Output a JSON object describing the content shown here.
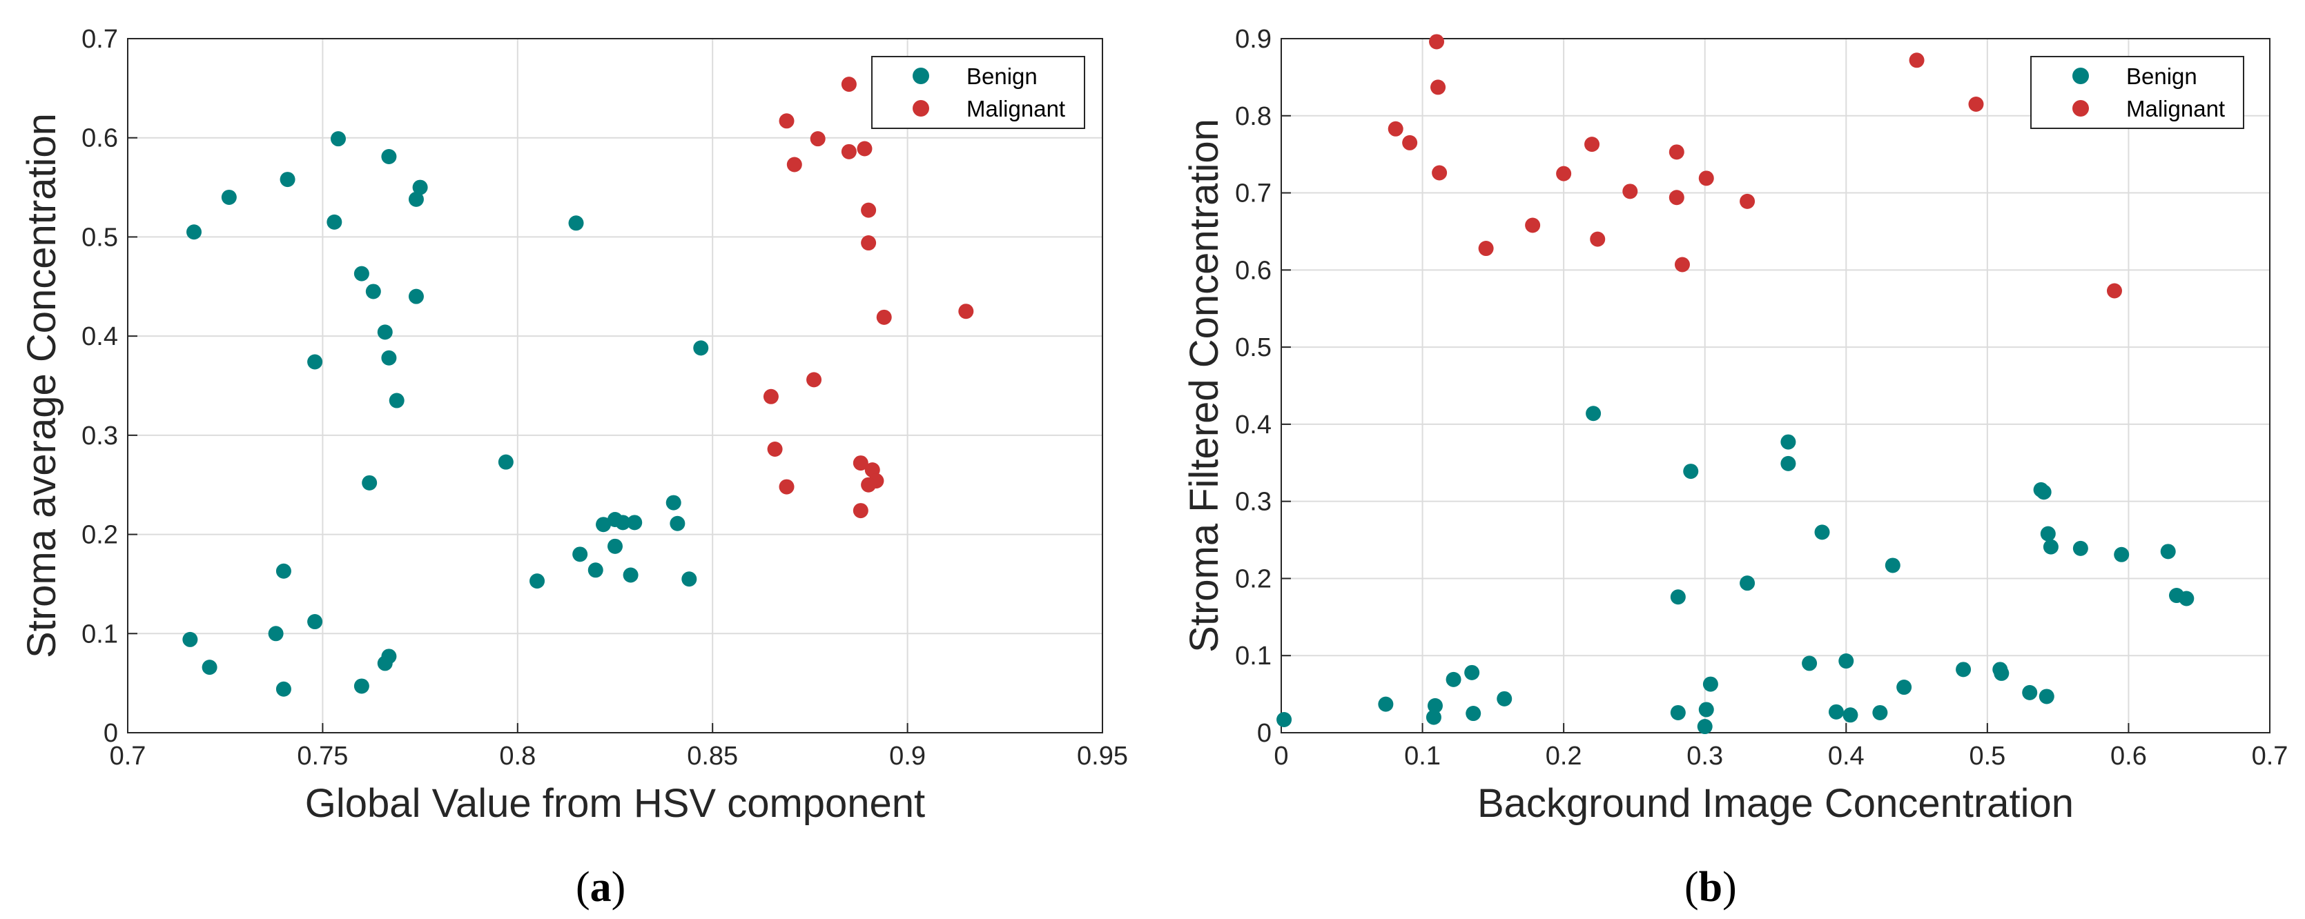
{
  "colors": {
    "benign": "#00807f",
    "malignant": "#cc3333",
    "axis": "#262626",
    "grid": "#dcdcdc"
  },
  "chart_data": [
    {
      "type": "scatter",
      "panel_label": "a",
      "xlabel": "Global Value from HSV component",
      "ylabel": "Stroma average Concentration",
      "xlim": [
        0.7,
        0.95
      ],
      "ylim": [
        0,
        0.7
      ],
      "xticks": [
        "0.7",
        "0.75",
        "0.8",
        "0.85",
        "0.9",
        "0.95"
      ],
      "yticks": [
        "0",
        "0.1",
        "0.2",
        "0.3",
        "0.4",
        "0.5",
        "0.6",
        "0.7"
      ],
      "xtick_values": [
        0.7,
        0.75,
        0.8,
        0.85,
        0.9,
        0.95
      ],
      "ytick_values": [
        0,
        0.1,
        0.2,
        0.3,
        0.4,
        0.5,
        0.6,
        0.7
      ],
      "legend": {
        "position": "top-right",
        "entries": [
          "Benign",
          "Malignant"
        ]
      },
      "grid": true,
      "series": [
        {
          "name": "Benign",
          "points": [
            [
              0.717,
              0.505
            ],
            [
              0.726,
              0.54
            ],
            [
              0.741,
              0.558
            ],
            [
              0.754,
              0.599
            ],
            [
              0.753,
              0.515
            ],
            [
              0.767,
              0.581
            ],
            [
              0.775,
              0.55
            ],
            [
              0.774,
              0.538
            ],
            [
              0.76,
              0.463
            ],
            [
              0.763,
              0.445
            ],
            [
              0.774,
              0.44
            ],
            [
              0.766,
              0.404
            ],
            [
              0.748,
              0.374
            ],
            [
              0.767,
              0.378
            ],
            [
              0.769,
              0.335
            ],
            [
              0.762,
              0.252
            ],
            [
              0.74,
              0.163
            ],
            [
              0.748,
              0.112
            ],
            [
              0.738,
              0.1
            ],
            [
              0.716,
              0.094
            ],
            [
              0.721,
              0.066
            ],
            [
              0.74,
              0.044
            ],
            [
              0.76,
              0.047
            ],
            [
              0.767,
              0.077
            ],
            [
              0.766,
              0.07
            ],
            [
              0.797,
              0.273
            ],
            [
              0.815,
              0.514
            ],
            [
              0.847,
              0.388
            ],
            [
              0.805,
              0.153
            ],
            [
              0.816,
              0.18
            ],
            [
              0.82,
              0.164
            ],
            [
              0.822,
              0.21
            ],
            [
              0.825,
              0.215
            ],
            [
              0.827,
              0.212
            ],
            [
              0.825,
              0.188
            ],
            [
              0.83,
              0.212
            ],
            [
              0.829,
              0.159
            ],
            [
              0.84,
              0.232
            ],
            [
              0.841,
              0.211
            ],
            [
              0.844,
              0.155
            ]
          ]
        },
        {
          "name": "Malignant",
          "points": [
            [
              0.885,
              0.654
            ],
            [
              0.869,
              0.617
            ],
            [
              0.877,
              0.599
            ],
            [
              0.885,
              0.586
            ],
            [
              0.889,
              0.589
            ],
            [
              0.871,
              0.573
            ],
            [
              0.89,
              0.527
            ],
            [
              0.89,
              0.494
            ],
            [
              0.894,
              0.419
            ],
            [
              0.915,
              0.425
            ],
            [
              0.865,
              0.339
            ],
            [
              0.876,
              0.356
            ],
            [
              0.866,
              0.286
            ],
            [
              0.869,
              0.248
            ],
            [
              0.888,
              0.272
            ],
            [
              0.891,
              0.265
            ],
            [
              0.892,
              0.254
            ],
            [
              0.89,
              0.25
            ],
            [
              0.888,
              0.224
            ]
          ]
        }
      ]
    },
    {
      "type": "scatter",
      "panel_label": "b",
      "xlabel": "Background Image Concentration",
      "ylabel": "Stroma Filtered Concentration",
      "xlim": [
        0,
        0.7
      ],
      "ylim": [
        0,
        0.9
      ],
      "xticks": [
        "0",
        "0.1",
        "0.2",
        "0.3",
        "0.4",
        "0.5",
        "0.6",
        "0.7"
      ],
      "yticks": [
        "0",
        "0.1",
        "0.2",
        "0.3",
        "0.4",
        "0.5",
        "0.6",
        "0.7",
        "0.8",
        "0.9"
      ],
      "xtick_values": [
        0,
        0.1,
        0.2,
        0.3,
        0.4,
        0.5,
        0.6,
        0.7
      ],
      "ytick_values": [
        0,
        0.1,
        0.2,
        0.3,
        0.4,
        0.5,
        0.6,
        0.7,
        0.8,
        0.9
      ],
      "legend": {
        "position": "top-right",
        "entries": [
          "Benign",
          "Malignant"
        ]
      },
      "grid": true,
      "series": [
        {
          "name": "Benign",
          "points": [
            [
              0.002,
              0.017
            ],
            [
              0.074,
              0.037
            ],
            [
              0.109,
              0.035
            ],
            [
              0.108,
              0.02
            ],
            [
              0.122,
              0.069
            ],
            [
              0.135,
              0.078
            ],
            [
              0.136,
              0.025
            ],
            [
              0.158,
              0.044
            ],
            [
              0.221,
              0.414
            ],
            [
              0.281,
              0.176
            ],
            [
              0.281,
              0.026
            ],
            [
              0.29,
              0.339
            ],
            [
              0.3,
              0.008
            ],
            [
              0.301,
              0.03
            ],
            [
              0.304,
              0.063
            ],
            [
              0.33,
              0.194
            ],
            [
              0.359,
              0.377
            ],
            [
              0.359,
              0.349
            ],
            [
              0.374,
              0.09
            ],
            [
              0.383,
              0.26
            ],
            [
              0.393,
              0.027
            ],
            [
              0.4,
              0.093
            ],
            [
              0.403,
              0.023
            ],
            [
              0.424,
              0.026
            ],
            [
              0.433,
              0.217
            ],
            [
              0.441,
              0.059
            ],
            [
              0.483,
              0.082
            ],
            [
              0.509,
              0.082
            ],
            [
              0.51,
              0.077
            ],
            [
              0.53,
              0.052
            ],
            [
              0.538,
              0.315
            ],
            [
              0.54,
              0.312
            ],
            [
              0.543,
              0.258
            ],
            [
              0.545,
              0.241
            ],
            [
              0.542,
              0.047
            ],
            [
              0.566,
              0.239
            ],
            [
              0.595,
              0.231
            ],
            [
              0.628,
              0.235
            ],
            [
              0.634,
              0.178
            ],
            [
              0.641,
              0.174
            ]
          ]
        },
        {
          "name": "Malignant",
          "points": [
            [
              0.081,
              0.783
            ],
            [
              0.091,
              0.765
            ],
            [
              0.11,
              0.896
            ],
            [
              0.111,
              0.837
            ],
            [
              0.112,
              0.726
            ],
            [
              0.145,
              0.628
            ],
            [
              0.178,
              0.658
            ],
            [
              0.2,
              0.725
            ],
            [
              0.22,
              0.763
            ],
            [
              0.224,
              0.64
            ],
            [
              0.247,
              0.702
            ],
            [
              0.28,
              0.753
            ],
            [
              0.28,
              0.694
            ],
            [
              0.284,
              0.607
            ],
            [
              0.301,
              0.719
            ],
            [
              0.33,
              0.689
            ],
            [
              0.45,
              0.872
            ],
            [
              0.492,
              0.815
            ],
            [
              0.59,
              0.573
            ]
          ]
        }
      ]
    }
  ]
}
